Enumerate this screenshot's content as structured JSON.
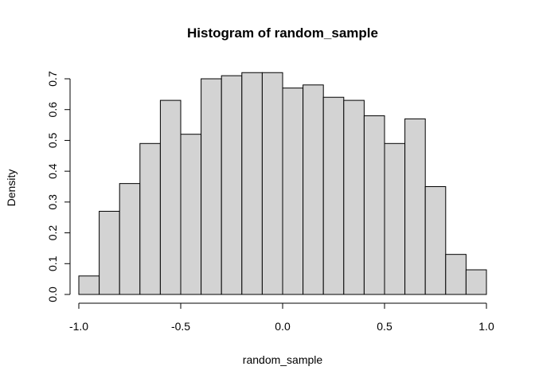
{
  "chart_data": {
    "type": "bar",
    "title": "Histogram of random_sample",
    "xlabel": "random_sample",
    "ylabel": "Density",
    "xlim": [
      -1.0,
      1.0
    ],
    "ylim": [
      0,
      0.7
    ],
    "x_ticks": [
      "-1.0",
      "-0.5",
      "0.0",
      "0.5",
      "1.0"
    ],
    "y_ticks": [
      "0.0",
      "0.1",
      "0.2",
      "0.3",
      "0.4",
      "0.5",
      "0.6",
      "0.7"
    ],
    "bin_width": 0.1,
    "bins": [
      {
        "x0": -1.0,
        "x1": -0.9,
        "value": 0.06
      },
      {
        "x0": -0.9,
        "x1": -0.8,
        "value": 0.27
      },
      {
        "x0": -0.8,
        "x1": -0.7,
        "value": 0.36
      },
      {
        "x0": -0.7,
        "x1": -0.6,
        "value": 0.49
      },
      {
        "x0": -0.6,
        "x1": -0.5,
        "value": 0.63
      },
      {
        "x0": -0.5,
        "x1": -0.4,
        "value": 0.52
      },
      {
        "x0": -0.4,
        "x1": -0.3,
        "value": 0.7
      },
      {
        "x0": -0.3,
        "x1": -0.2,
        "value": 0.71
      },
      {
        "x0": -0.2,
        "x1": -0.1,
        "value": 0.72
      },
      {
        "x0": -0.1,
        "x1": 0.0,
        "value": 0.72
      },
      {
        "x0": 0.0,
        "x1": 0.1,
        "value": 0.67
      },
      {
        "x0": 0.1,
        "x1": 0.2,
        "value": 0.68
      },
      {
        "x0": 0.2,
        "x1": 0.3,
        "value": 0.64
      },
      {
        "x0": 0.3,
        "x1": 0.4,
        "value": 0.63
      },
      {
        "x0": 0.4,
        "x1": 0.5,
        "value": 0.58
      },
      {
        "x0": 0.5,
        "x1": 0.6,
        "value": 0.49
      },
      {
        "x0": 0.6,
        "x1": 0.7,
        "value": 0.57
      },
      {
        "x0": 0.7,
        "x1": 0.8,
        "value": 0.35
      },
      {
        "x0": 0.8,
        "x1": 0.9,
        "value": 0.13
      },
      {
        "x0": 0.9,
        "x1": 1.0,
        "value": 0.08
      }
    ],
    "bar_fill": "#d3d3d3",
    "bar_stroke": "#000000",
    "grid": false,
    "legend": "none"
  }
}
